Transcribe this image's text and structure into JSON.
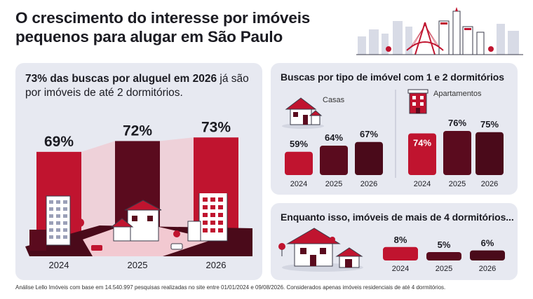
{
  "title_line1": "O crescimento do interesse por imóveis",
  "title_line2": "pequenos para alugar em São Paulo",
  "left_panel": {
    "headline_bold": "73% das buscas por aluguel em 2026",
    "headline_rest": " já são por imóveis de até 2 dormitórios."
  },
  "top_right": {
    "title": "Buscas por tipo de imóvel com 1 e 2 dormitórios",
    "casas_label": "Casas",
    "apartamentos_label": "Apartamentos"
  },
  "bottom_right": {
    "title": "Enquanto isso, imóveis de mais de 4 dormitórios..."
  },
  "footnote": "Análise Lello Imóveis com base em 14.540.997 pesquisas realizadas no site entre 01/01/2024 e 09/08/2026. Considerados apenas imóveis residenciais de até 4 dormitórios.",
  "colors": {
    "red": "#c0142f",
    "dark": "#5a0b1e",
    "darkest": "#4a0a1a",
    "panel": "#e7e9f1"
  },
  "chart_data": [
    {
      "type": "bar",
      "categories": [
        "2024",
        "2025",
        "2026"
      ],
      "values": [
        69,
        72,
        73
      ],
      "value_labels": [
        "69%",
        "72%",
        "73%"
      ],
      "title": "73% das buscas por aluguel em 2026 já são por imóveis de até 2 dormitórios."
    },
    {
      "type": "bar",
      "title": "Casas",
      "categories": [
        "2024",
        "2025",
        "2026"
      ],
      "values": [
        59,
        64,
        67
      ],
      "value_labels": [
        "59%",
        "64%",
        "67%"
      ]
    },
    {
      "type": "bar",
      "title": "Apartamentos",
      "categories": [
        "2024",
        "2025",
        "2026"
      ],
      "values": [
        74,
        76,
        75
      ],
      "value_labels": [
        "74%",
        "76%",
        "75%"
      ]
    },
    {
      "type": "bar",
      "title": "Enquanto isso, imóveis de mais de 4 dormitórios...",
      "categories": [
        "2024",
        "2025",
        "2026"
      ],
      "values": [
        8,
        5,
        6
      ],
      "value_labels": [
        "8%",
        "5%",
        "6%"
      ]
    }
  ]
}
